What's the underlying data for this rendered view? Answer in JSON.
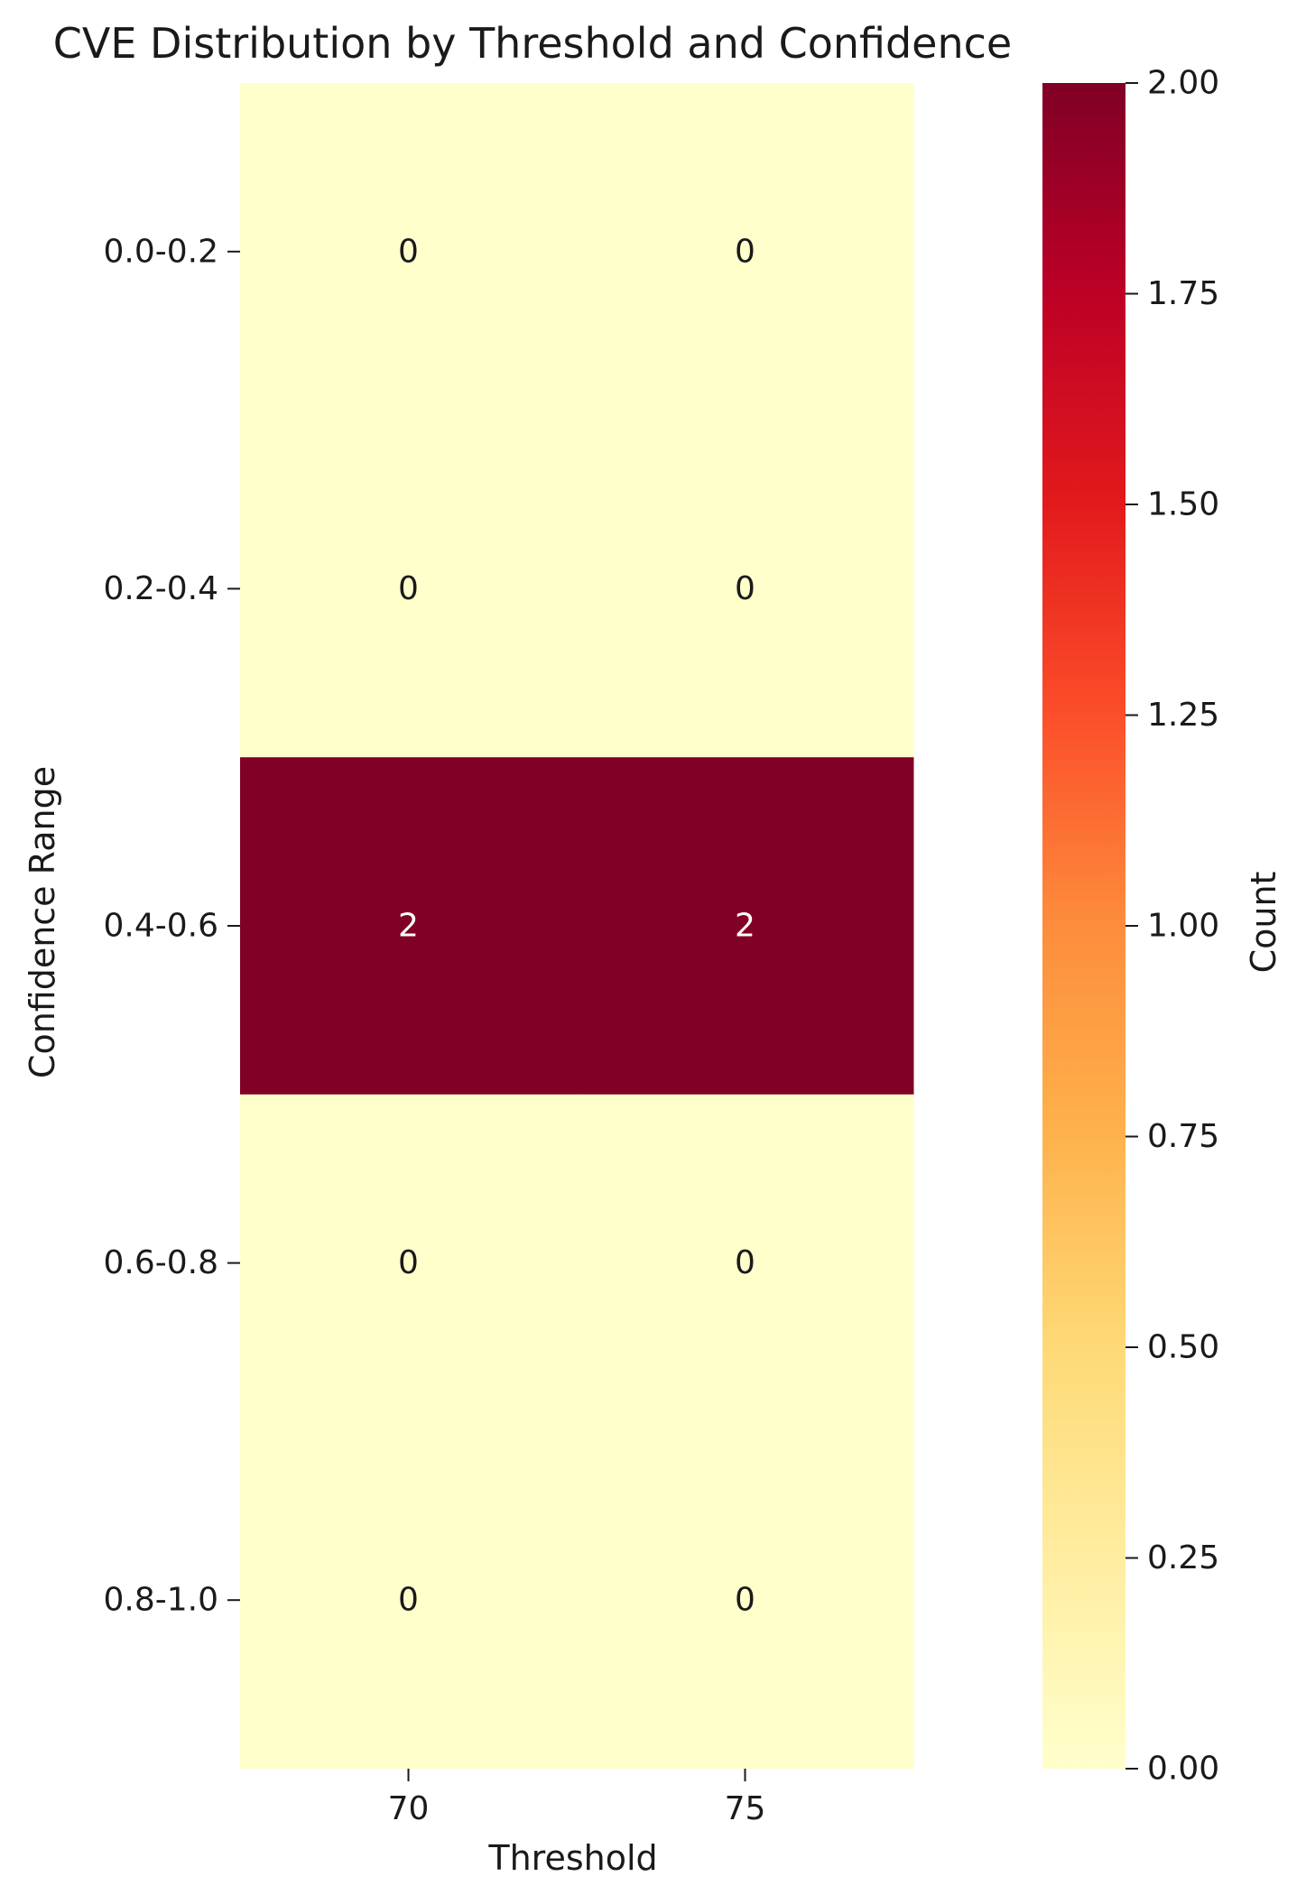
{
  "chart_data": {
    "type": "heatmap",
    "title": "CVE Distribution by Threshold and Confidence",
    "xlabel": "Threshold",
    "ylabel": "Confidence Range",
    "x_categories": [
      "70",
      "75"
    ],
    "y_categories": [
      "0.0-0.2",
      "0.2-0.4",
      "0.4-0.6",
      "0.6-0.8",
      "0.8-1.0"
    ],
    "values": [
      [
        0,
        0
      ],
      [
        0,
        0
      ],
      [
        2,
        2
      ],
      [
        0,
        0
      ],
      [
        0,
        0
      ]
    ],
    "colorbar": {
      "label": "Count",
      "range": [
        0,
        2
      ],
      "ticks": [
        "0.00",
        "0.25",
        "0.50",
        "0.75",
        "1.00",
        "1.25",
        "1.50",
        "1.75",
        "2.00"
      ],
      "colormap": "YlOrRd",
      "colors": [
        "#ffffcc",
        "#ffeda0",
        "#fed976",
        "#feb24c",
        "#fd8d3c",
        "#fc4e2a",
        "#e31a1c",
        "#bd0026",
        "#800026"
      ]
    },
    "annotations": true
  }
}
